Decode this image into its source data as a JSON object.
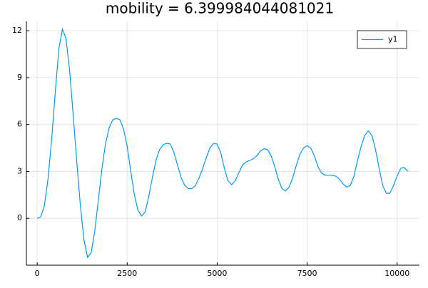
{
  "chart_data": {
    "type": "line",
    "title": "mobility = 6.399984044081021",
    "x": [
      0,
      100,
      200,
      300,
      400,
      500,
      600,
      700,
      800,
      900,
      1000,
      1100,
      1200,
      1300,
      1400,
      1500,
      1600,
      1700,
      1800,
      1900,
      2000,
      2100,
      2200,
      2300,
      2400,
      2500,
      2600,
      2700,
      2800,
      2900,
      3000,
      3100,
      3200,
      3300,
      3400,
      3500,
      3600,
      3700,
      3800,
      3900,
      4000,
      4100,
      4200,
      4300,
      4400,
      4500,
      4600,
      4700,
      4800,
      4900,
      5000,
      5100,
      5200,
      5300,
      5400,
      5500,
      5600,
      5700,
      5800,
      5900,
      6000,
      6100,
      6200,
      6300,
      6400,
      6500,
      6600,
      6700,
      6800,
      6900,
      7000,
      7100,
      7200,
      7300,
      7400,
      7500,
      7600,
      7700,
      7800,
      7900,
      8000,
      8100,
      8200,
      8300,
      8400,
      8500,
      8600,
      8700,
      8800,
      8900,
      9000,
      9100,
      9200,
      9300,
      9400,
      9500,
      9600,
      9700,
      9800,
      9900,
      10000,
      10100,
      10200,
      10300
    ],
    "series": [
      {
        "name": "y1",
        "color": "#009af9",
        "values": [
          0,
          0.1,
          0.8,
          2.5,
          5,
          8,
          10.8,
          12.1,
          11.5,
          9.5,
          6.6,
          3.6,
          0.8,
          -1.4,
          -2.5,
          -2.2,
          -0.8,
          1.2,
          3.2,
          4.8,
          5.8,
          6.3,
          6.4,
          6.3,
          5.7,
          4.6,
          3.0,
          1.5,
          0.5,
          0.15,
          0.4,
          1.4,
          2.6,
          3.7,
          4.4,
          4.7,
          4.8,
          4.75,
          4.2,
          3.4,
          2.6,
          2.1,
          1.9,
          1.9,
          2.1,
          2.6,
          3.2,
          3.9,
          4.5,
          4.8,
          4.75,
          4.2,
          3.2,
          2.4,
          2.15,
          2.4,
          2.9,
          3.4,
          3.6,
          3.7,
          3.8,
          4.0,
          4.3,
          4.45,
          4.4,
          4.0,
          3.3,
          2.5,
          1.9,
          1.75,
          2.0,
          2.6,
          3.4,
          4.1,
          4.5,
          4.65,
          4.5,
          4.0,
          3.3,
          2.9,
          2.75,
          2.75,
          2.75,
          2.7,
          2.5,
          2.2,
          2.0,
          2.1,
          2.7,
          3.7,
          4.6,
          5.3,
          5.6,
          5.3,
          4.4,
          3.2,
          2.1,
          1.6,
          1.6,
          2.1,
          2.7,
          3.2,
          3.25,
          3.0
        ]
      }
    ],
    "xlim": [
      -300,
      10620
    ],
    "ylim": [
      -3.0,
      12.6
    ],
    "xticks": [
      0,
      2500,
      5000,
      7500,
      10000
    ],
    "yticks": [
      0,
      3,
      6,
      9,
      12
    ],
    "grid": true,
    "legend": "top-right"
  }
}
